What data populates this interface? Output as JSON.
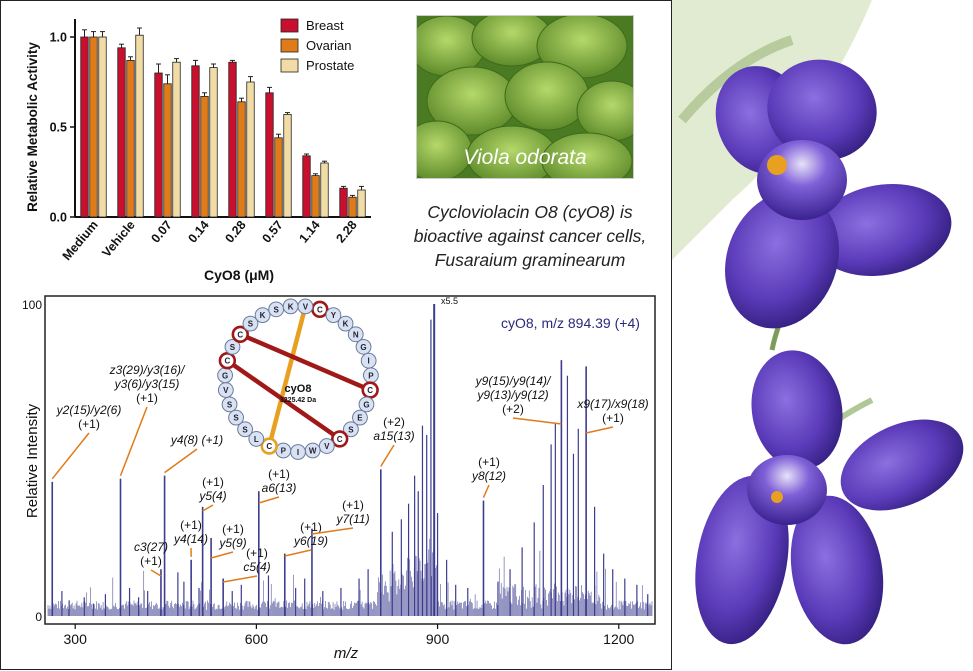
{
  "bar_chart_ylabel": "Relative  Metabolic Activity",
  "bar_chart_xlabel": "CyO8 (μM)",
  "photo_caption": "Viola odorata",
  "description_lines": [
    "Cycloviolacin O8 (cyO8) is",
    "bioactive against cancer cells,",
    "Fusaraium graminearum"
  ],
  "spectrum_title": "cyO8, m/z 894.39 (+4)",
  "spectrum_zoom": "x5.5",
  "spectrum_ylabel": "Relative Intensity",
  "spectrum_xlabel": "m/z",
  "peptide": {
    "name": "cyO8",
    "mass": "3225.42 Da",
    "residues": [
      "C",
      "Y",
      "K",
      "N",
      "G",
      "I",
      "P",
      "C",
      "G",
      "E",
      "S",
      "C",
      "V",
      "W",
      "I",
      "P",
      "C",
      "L",
      "S",
      "S",
      "S",
      "V",
      "G",
      "C",
      "S",
      "C",
      "S",
      "K",
      "S",
      "K",
      "V"
    ]
  },
  "colors": {
    "breast": "#c8102e",
    "ovarian": "#e07b1a",
    "prostate": "#f2dca6",
    "spectrum": "#3d3d8f",
    "annotation": "#e07b1a"
  },
  "chart_data": [
    {
      "type": "bar",
      "categories": [
        "Medium",
        "Vehicle",
        "0.07",
        "0.14",
        "0.28",
        "0.57",
        "1.14",
        "2.28"
      ],
      "series": [
        {
          "name": "Breast",
          "values": [
            1.0,
            0.94,
            0.8,
            0.84,
            0.86,
            0.69,
            0.34,
            0.16
          ],
          "errors": [
            0.04,
            0.02,
            0.05,
            0.03,
            0.01,
            0.03,
            0.01,
            0.01
          ]
        },
        {
          "name": "Ovarian",
          "values": [
            1.0,
            0.87,
            0.74,
            0.67,
            0.64,
            0.44,
            0.23,
            0.11
          ],
          "errors": [
            0.03,
            0.02,
            0.05,
            0.02,
            0.02,
            0.02,
            0.01,
            0.01
          ]
        },
        {
          "name": "Prostate",
          "values": [
            1.0,
            1.01,
            0.86,
            0.83,
            0.75,
            0.57,
            0.3,
            0.15
          ],
          "errors": [
            0.03,
            0.04,
            0.02,
            0.02,
            0.03,
            0.01,
            0.01,
            0.02
          ]
        }
      ],
      "xlabel": "CyO8 (μM)",
      "ylabel": "Relative  Metabolic Activity",
      "ylim": [
        0,
        1.1
      ],
      "yticks": [
        "0.0",
        "0.5",
        "1.0"
      ],
      "legend": "top-right"
    },
    {
      "type": "line",
      "xlabel": "m/z",
      "ylabel": "Relative Intensity",
      "xlim": [
        250,
        1260
      ],
      "ylim": [
        0,
        100
      ],
      "xticks": [
        "300",
        "600",
        "900",
        "1200"
      ],
      "yticks": [
        "0",
        "100"
      ],
      "main_peak": {
        "mz": 894.39,
        "intensity": 100
      },
      "labeled_peaks": [
        {
          "mz": 262,
          "intensity": 43,
          "label": [
            "y2(15)/y2(6)",
            "(+1)"
          ]
        },
        {
          "mz": 375,
          "intensity": 44,
          "label": [
            "z3(29)/y3(16)/",
            "y3(6)/y3(15)",
            "(+1)"
          ]
        },
        {
          "mz": 448,
          "intensity": 45,
          "label": [
            "y4(8) (+1)"
          ]
        },
        {
          "mz": 442,
          "intensity": 15,
          "label": [
            "c3(27)",
            "(+1)"
          ]
        },
        {
          "mz": 492,
          "intensity": 18,
          "label": [
            "(+1)",
            "y4(14)"
          ]
        },
        {
          "mz": 511,
          "intensity": 35,
          "label": [
            "(+1)",
            "y5(4)"
          ]
        },
        {
          "mz": 525,
          "intensity": 25,
          "label": [
            "(+1)",
            "y5(9)"
          ]
        },
        {
          "mz": 545,
          "intensity": 12,
          "label": [
            "(+1)",
            "c5(4)"
          ]
        },
        {
          "mz": 604,
          "intensity": 40,
          "label": [
            "(+1)",
            "a6(13)"
          ]
        },
        {
          "mz": 647,
          "intensity": 20,
          "label": [
            "(+1)",
            "y6(19)"
          ]
        },
        {
          "mz": 692,
          "intensity": 28,
          "label": [
            "(+1)",
            "y7(11)"
          ]
        },
        {
          "mz": 806,
          "intensity": 47,
          "label": [
            "(+2)",
            "a15(13)"
          ]
        },
        {
          "mz": 976,
          "intensity": 37,
          "label": [
            "(+1)",
            "y8(12)"
          ]
        },
        {
          "mz": 1105,
          "intensity": 82,
          "label": [
            "y9(15)/y9(14)/",
            "y9(13)/y9(12)",
            "(+2)"
          ]
        },
        {
          "mz": 1146,
          "intensity": 80,
          "label": [
            "x9(17)/x9(18)",
            "(+1)"
          ]
        }
      ],
      "other_peaks": [
        {
          "mz": 278,
          "intensity": 8
        },
        {
          "mz": 290,
          "intensity": 5
        },
        {
          "mz": 315,
          "intensity": 6
        },
        {
          "mz": 330,
          "intensity": 4
        },
        {
          "mz": 350,
          "intensity": 7
        },
        {
          "mz": 390,
          "intensity": 9
        },
        {
          "mz": 405,
          "intensity": 6
        },
        {
          "mz": 420,
          "intensity": 8
        },
        {
          "mz": 470,
          "intensity": 14
        },
        {
          "mz": 480,
          "intensity": 11
        },
        {
          "mz": 505,
          "intensity": 9
        },
        {
          "mz": 560,
          "intensity": 8
        },
        {
          "mz": 575,
          "intensity": 10
        },
        {
          "mz": 620,
          "intensity": 13
        },
        {
          "mz": 665,
          "intensity": 9
        },
        {
          "mz": 680,
          "intensity": 12
        },
        {
          "mz": 710,
          "intensity": 8
        },
        {
          "mz": 740,
          "intensity": 9
        },
        {
          "mz": 770,
          "intensity": 12
        },
        {
          "mz": 785,
          "intensity": 15
        },
        {
          "mz": 825,
          "intensity": 27
        },
        {
          "mz": 840,
          "intensity": 31
        },
        {
          "mz": 852,
          "intensity": 36
        },
        {
          "mz": 862,
          "intensity": 45
        },
        {
          "mz": 868,
          "intensity": 40
        },
        {
          "mz": 875,
          "intensity": 61
        },
        {
          "mz": 882,
          "intensity": 58
        },
        {
          "mz": 889,
          "intensity": 95
        },
        {
          "mz": 900,
          "intensity": 33
        },
        {
          "mz": 915,
          "intensity": 18
        },
        {
          "mz": 930,
          "intensity": 10
        },
        {
          "mz": 950,
          "intensity": 9
        },
        {
          "mz": 1000,
          "intensity": 11
        },
        {
          "mz": 1020,
          "intensity": 15
        },
        {
          "mz": 1040,
          "intensity": 22
        },
        {
          "mz": 1060,
          "intensity": 30
        },
        {
          "mz": 1075,
          "intensity": 42
        },
        {
          "mz": 1088,
          "intensity": 55
        },
        {
          "mz": 1095,
          "intensity": 62
        },
        {
          "mz": 1115,
          "intensity": 77
        },
        {
          "mz": 1125,
          "intensity": 52
        },
        {
          "mz": 1133,
          "intensity": 60
        },
        {
          "mz": 1160,
          "intensity": 35
        },
        {
          "mz": 1175,
          "intensity": 20
        },
        {
          "mz": 1190,
          "intensity": 15
        },
        {
          "mz": 1210,
          "intensity": 12
        },
        {
          "mz": 1230,
          "intensity": 10
        },
        {
          "mz": 1248,
          "intensity": 7
        }
      ]
    }
  ]
}
